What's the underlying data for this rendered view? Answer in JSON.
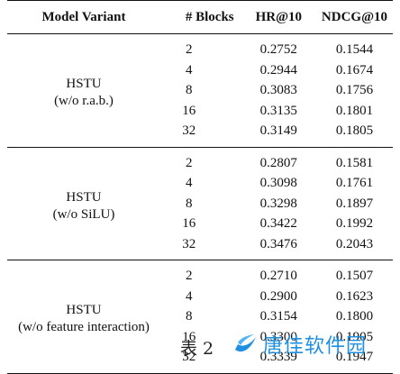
{
  "table": {
    "headers": [
      "Model Variant",
      "# Blocks",
      "HR@10",
      "NDCG@10"
    ],
    "groups": [
      {
        "name": "HSTU",
        "note": "(w/o r.a.b.)",
        "rows": [
          {
            "blocks": "2",
            "hr": "0.2752",
            "ndcg": "0.1544"
          },
          {
            "blocks": "4",
            "hr": "0.2944",
            "ndcg": "0.1674"
          },
          {
            "blocks": "8",
            "hr": "0.3083",
            "ndcg": "0.1756"
          },
          {
            "blocks": "16",
            "hr": "0.3135",
            "ndcg": "0.1801"
          },
          {
            "blocks": "32",
            "hr": "0.3149",
            "ndcg": "0.1805"
          }
        ]
      },
      {
        "name": "HSTU",
        "note": "(w/o SiLU)",
        "rows": [
          {
            "blocks": "2",
            "hr": "0.2807",
            "ndcg": "0.1581"
          },
          {
            "blocks": "4",
            "hr": "0.3098",
            "ndcg": "0.1761"
          },
          {
            "blocks": "8",
            "hr": "0.3298",
            "ndcg": "0.1897"
          },
          {
            "blocks": "16",
            "hr": "0.3422",
            "ndcg": "0.1992"
          },
          {
            "blocks": "32",
            "hr": "0.3476",
            "ndcg": "0.2043"
          }
        ]
      },
      {
        "name": "HSTU",
        "note": "(w/o feature interaction)",
        "rows": [
          {
            "blocks": "2",
            "hr": "0.2710",
            "ndcg": "0.1507"
          },
          {
            "blocks": "4",
            "hr": "0.2900",
            "ndcg": "0.1623"
          },
          {
            "blocks": "8",
            "hr": "0.3154",
            "ndcg": "0.1800"
          },
          {
            "blocks": "16",
            "hr": "0.3300",
            "ndcg": "0.1905"
          },
          {
            "blocks": "32",
            "hr": "0.3339",
            "ndcg": "0.1947"
          }
        ]
      }
    ]
  },
  "caption": "表 2",
  "watermark": {
    "text": "唐佳软件园",
    "icon": "swoosh-logo-icon",
    "color": "#1f8fe0"
  }
}
